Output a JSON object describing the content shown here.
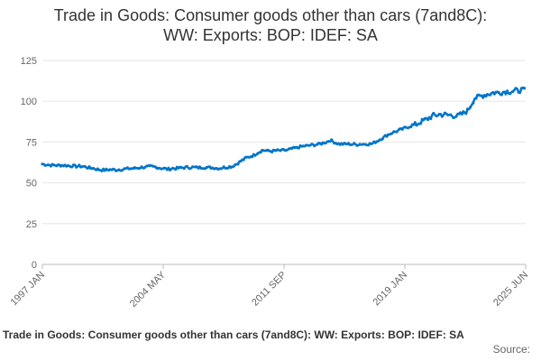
{
  "chart_data": {
    "type": "line",
    "title_line1": "Trade in Goods: Consumer goods other than cars (7and8C):",
    "title_line2": "WW: Exports: BOP: IDEF: SA",
    "xlabel": "",
    "ylabel": "",
    "x_ticks": [
      "1997 JAN",
      "2004 MAY",
      "2011 SEP",
      "2019 JAN",
      "2025 JUN"
    ],
    "y_ticks": [
      0,
      25,
      50,
      75,
      100,
      125
    ],
    "ylim": [
      0,
      125
    ],
    "x_range": [
      "1997-01",
      "2025-06"
    ],
    "grid": "horizontal",
    "series_color": "#0075c9",
    "anchor_points": [
      [
        "1997-01",
        61.5
      ],
      [
        "1997-06",
        61
      ],
      [
        "1998-06",
        60.5
      ],
      [
        "1999-06",
        60
      ],
      [
        "2000-06",
        58
      ],
      [
        "2001-06",
        58
      ],
      [
        "2002-06",
        59
      ],
      [
        "2003-06",
        60
      ],
      [
        "2004-05",
        58.5
      ],
      [
        "2005-06",
        59.5
      ],
      [
        "2006-06",
        59.5
      ],
      [
        "2007-06",
        59
      ],
      [
        "2008-03",
        60
      ],
      [
        "2008-12",
        65
      ],
      [
        "2009-06",
        67
      ],
      [
        "2009-12",
        70
      ],
      [
        "2010-06",
        69.5
      ],
      [
        "2011-06",
        70
      ],
      [
        "2011-09",
        71
      ],
      [
        "2012-06",
        72.5
      ],
      [
        "2013-06",
        74
      ],
      [
        "2013-12",
        76
      ],
      [
        "2014-06",
        74
      ],
      [
        "2015-06",
        73.5
      ],
      [
        "2016-06",
        74
      ],
      [
        "2017-06",
        80
      ],
      [
        "2018-06",
        84
      ],
      [
        "2019-01",
        86
      ],
      [
        "2019-06",
        88
      ],
      [
        "2019-12",
        91
      ],
      [
        "2020-06",
        92
      ],
      [
        "2021-06",
        91
      ],
      [
        "2022-01",
        94
      ],
      [
        "2022-06",
        102
      ],
      [
        "2023-06",
        105
      ],
      [
        "2024-06",
        106
      ],
      [
        "2025-06",
        107
      ]
    ]
  },
  "footer": {
    "title": "Trade in Goods: Consumer goods other than cars (7and8C): WW: Exports: BOP: IDEF: SA",
    "source": "Source:"
  }
}
